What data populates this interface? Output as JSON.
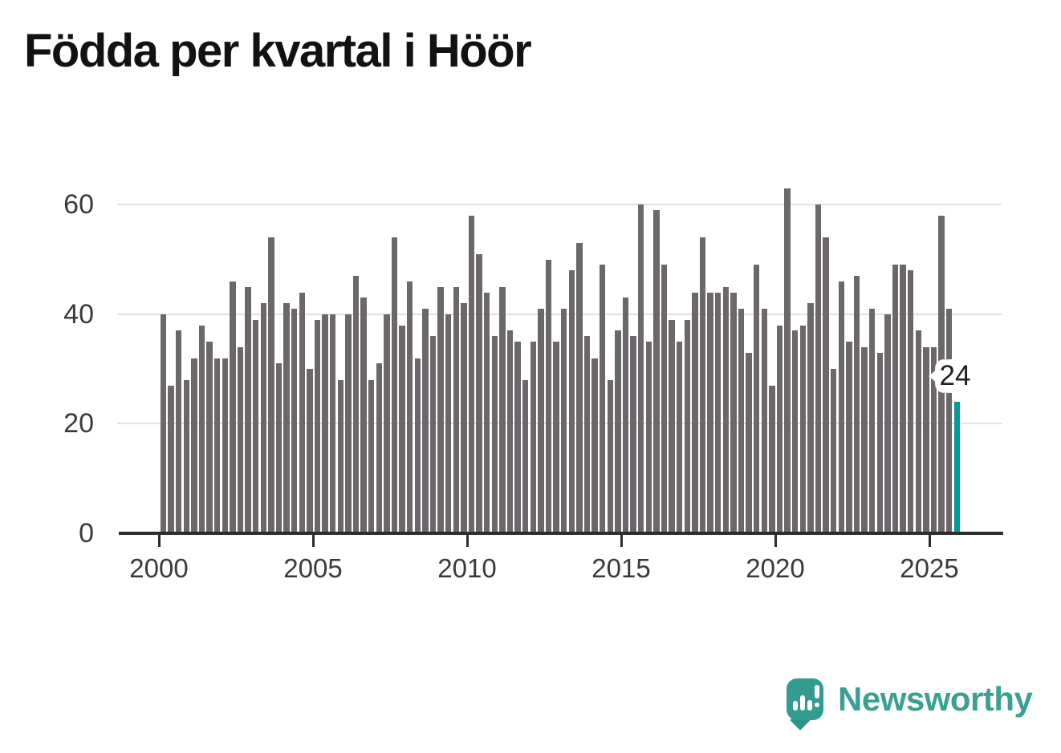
{
  "title": "Födda per kvartal i Höör",
  "chart_data": {
    "type": "bar",
    "title": "Födda per kvartal i Höör",
    "frequency": "quarterly",
    "x_start": "2000-Q1",
    "x_end": "2025-Q4",
    "values": [
      40,
      27,
      37,
      28,
      32,
      38,
      35,
      32,
      32,
      46,
      34,
      45,
      39,
      42,
      54,
      31,
      42,
      41,
      44,
      30,
      39,
      40,
      40,
      28,
      40,
      47,
      43,
      28,
      31,
      40,
      54,
      38,
      46,
      32,
      41,
      36,
      45,
      40,
      45,
      42,
      58,
      51,
      44,
      36,
      45,
      37,
      35,
      28,
      35,
      41,
      50,
      35,
      41,
      48,
      53,
      36,
      32,
      49,
      28,
      37,
      43,
      36,
      60,
      35,
      59,
      49,
      39,
      35,
      39,
      44,
      54,
      44,
      44,
      45,
      44,
      41,
      33,
      49,
      41,
      27,
      38,
      63,
      37,
      38,
      42,
      60,
      54,
      30,
      46,
      35,
      47,
      34,
      41,
      33,
      40,
      49,
      49,
      48,
      37,
      34,
      34,
      58,
      41,
      24
    ],
    "x_tick_labels": [
      "2000",
      "2005",
      "2010",
      "2015",
      "2020",
      "2025"
    ],
    "y_tick_labels": [
      "0",
      "20",
      "40",
      "60"
    ],
    "y_ticks": [
      0,
      20,
      40,
      60
    ],
    "ylim": [
      0,
      65
    ],
    "grid": "horizontal",
    "legend": "none",
    "bar_color": "#6b676b",
    "highlight_color": "#009a9a",
    "highlighted_index": 103,
    "highlight_label": "24"
  },
  "callout": {
    "label": "24"
  },
  "branding": {
    "name": "Newsworthy",
    "bubble_color": "#339c90",
    "text_color": "#3ba093"
  }
}
